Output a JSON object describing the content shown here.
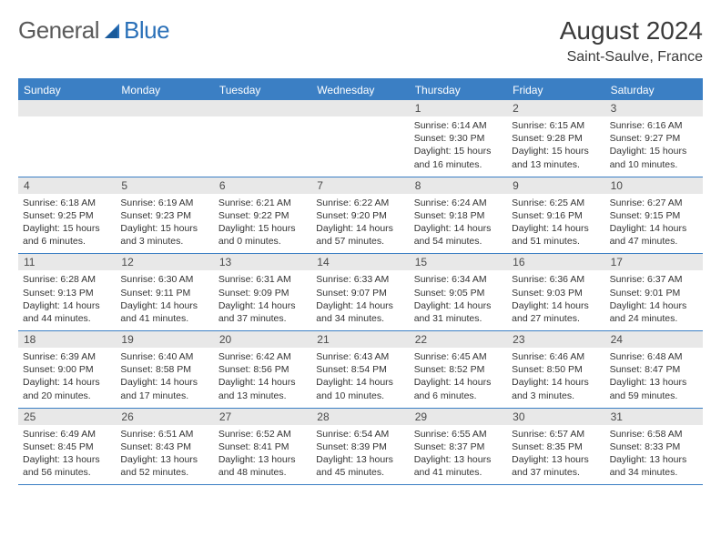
{
  "logo": {
    "text1": "General",
    "text2": "Blue"
  },
  "title": "August 2024",
  "location": "Saint-Saulve, France",
  "colors": {
    "header_bg": "#3b7fc4",
    "header_text": "#ffffff",
    "daynum_bg": "#e8e8e8",
    "daynum_text": "#4a4a4a",
    "body_text": "#333333",
    "rule": "#3b7fc4"
  },
  "weekdays": [
    "Sunday",
    "Monday",
    "Tuesday",
    "Wednesday",
    "Thursday",
    "Friday",
    "Saturday"
  ],
  "weeks": [
    [
      {
        "n": "",
        "lines": []
      },
      {
        "n": "",
        "lines": []
      },
      {
        "n": "",
        "lines": []
      },
      {
        "n": "",
        "lines": []
      },
      {
        "n": "1",
        "lines": [
          "Sunrise: 6:14 AM",
          "Sunset: 9:30 PM",
          "Daylight: 15 hours",
          "and 16 minutes."
        ]
      },
      {
        "n": "2",
        "lines": [
          "Sunrise: 6:15 AM",
          "Sunset: 9:28 PM",
          "Daylight: 15 hours",
          "and 13 minutes."
        ]
      },
      {
        "n": "3",
        "lines": [
          "Sunrise: 6:16 AM",
          "Sunset: 9:27 PM",
          "Daylight: 15 hours",
          "and 10 minutes."
        ]
      }
    ],
    [
      {
        "n": "4",
        "lines": [
          "Sunrise: 6:18 AM",
          "Sunset: 9:25 PM",
          "Daylight: 15 hours",
          "and 6 minutes."
        ]
      },
      {
        "n": "5",
        "lines": [
          "Sunrise: 6:19 AM",
          "Sunset: 9:23 PM",
          "Daylight: 15 hours",
          "and 3 minutes."
        ]
      },
      {
        "n": "6",
        "lines": [
          "Sunrise: 6:21 AM",
          "Sunset: 9:22 PM",
          "Daylight: 15 hours",
          "and 0 minutes."
        ]
      },
      {
        "n": "7",
        "lines": [
          "Sunrise: 6:22 AM",
          "Sunset: 9:20 PM",
          "Daylight: 14 hours",
          "and 57 minutes."
        ]
      },
      {
        "n": "8",
        "lines": [
          "Sunrise: 6:24 AM",
          "Sunset: 9:18 PM",
          "Daylight: 14 hours",
          "and 54 minutes."
        ]
      },
      {
        "n": "9",
        "lines": [
          "Sunrise: 6:25 AM",
          "Sunset: 9:16 PM",
          "Daylight: 14 hours",
          "and 51 minutes."
        ]
      },
      {
        "n": "10",
        "lines": [
          "Sunrise: 6:27 AM",
          "Sunset: 9:15 PM",
          "Daylight: 14 hours",
          "and 47 minutes."
        ]
      }
    ],
    [
      {
        "n": "11",
        "lines": [
          "Sunrise: 6:28 AM",
          "Sunset: 9:13 PM",
          "Daylight: 14 hours",
          "and 44 minutes."
        ]
      },
      {
        "n": "12",
        "lines": [
          "Sunrise: 6:30 AM",
          "Sunset: 9:11 PM",
          "Daylight: 14 hours",
          "and 41 minutes."
        ]
      },
      {
        "n": "13",
        "lines": [
          "Sunrise: 6:31 AM",
          "Sunset: 9:09 PM",
          "Daylight: 14 hours",
          "and 37 minutes."
        ]
      },
      {
        "n": "14",
        "lines": [
          "Sunrise: 6:33 AM",
          "Sunset: 9:07 PM",
          "Daylight: 14 hours",
          "and 34 minutes."
        ]
      },
      {
        "n": "15",
        "lines": [
          "Sunrise: 6:34 AM",
          "Sunset: 9:05 PM",
          "Daylight: 14 hours",
          "and 31 minutes."
        ]
      },
      {
        "n": "16",
        "lines": [
          "Sunrise: 6:36 AM",
          "Sunset: 9:03 PM",
          "Daylight: 14 hours",
          "and 27 minutes."
        ]
      },
      {
        "n": "17",
        "lines": [
          "Sunrise: 6:37 AM",
          "Sunset: 9:01 PM",
          "Daylight: 14 hours",
          "and 24 minutes."
        ]
      }
    ],
    [
      {
        "n": "18",
        "lines": [
          "Sunrise: 6:39 AM",
          "Sunset: 9:00 PM",
          "Daylight: 14 hours",
          "and 20 minutes."
        ]
      },
      {
        "n": "19",
        "lines": [
          "Sunrise: 6:40 AM",
          "Sunset: 8:58 PM",
          "Daylight: 14 hours",
          "and 17 minutes."
        ]
      },
      {
        "n": "20",
        "lines": [
          "Sunrise: 6:42 AM",
          "Sunset: 8:56 PM",
          "Daylight: 14 hours",
          "and 13 minutes."
        ]
      },
      {
        "n": "21",
        "lines": [
          "Sunrise: 6:43 AM",
          "Sunset: 8:54 PM",
          "Daylight: 14 hours",
          "and 10 minutes."
        ]
      },
      {
        "n": "22",
        "lines": [
          "Sunrise: 6:45 AM",
          "Sunset: 8:52 PM",
          "Daylight: 14 hours",
          "and 6 minutes."
        ]
      },
      {
        "n": "23",
        "lines": [
          "Sunrise: 6:46 AM",
          "Sunset: 8:50 PM",
          "Daylight: 14 hours",
          "and 3 minutes."
        ]
      },
      {
        "n": "24",
        "lines": [
          "Sunrise: 6:48 AM",
          "Sunset: 8:47 PM",
          "Daylight: 13 hours",
          "and 59 minutes."
        ]
      }
    ],
    [
      {
        "n": "25",
        "lines": [
          "Sunrise: 6:49 AM",
          "Sunset: 8:45 PM",
          "Daylight: 13 hours",
          "and 56 minutes."
        ]
      },
      {
        "n": "26",
        "lines": [
          "Sunrise: 6:51 AM",
          "Sunset: 8:43 PM",
          "Daylight: 13 hours",
          "and 52 minutes."
        ]
      },
      {
        "n": "27",
        "lines": [
          "Sunrise: 6:52 AM",
          "Sunset: 8:41 PM",
          "Daylight: 13 hours",
          "and 48 minutes."
        ]
      },
      {
        "n": "28",
        "lines": [
          "Sunrise: 6:54 AM",
          "Sunset: 8:39 PM",
          "Daylight: 13 hours",
          "and 45 minutes."
        ]
      },
      {
        "n": "29",
        "lines": [
          "Sunrise: 6:55 AM",
          "Sunset: 8:37 PM",
          "Daylight: 13 hours",
          "and 41 minutes."
        ]
      },
      {
        "n": "30",
        "lines": [
          "Sunrise: 6:57 AM",
          "Sunset: 8:35 PM",
          "Daylight: 13 hours",
          "and 37 minutes."
        ]
      },
      {
        "n": "31",
        "lines": [
          "Sunrise: 6:58 AM",
          "Sunset: 8:33 PM",
          "Daylight: 13 hours",
          "and 34 minutes."
        ]
      }
    ]
  ]
}
